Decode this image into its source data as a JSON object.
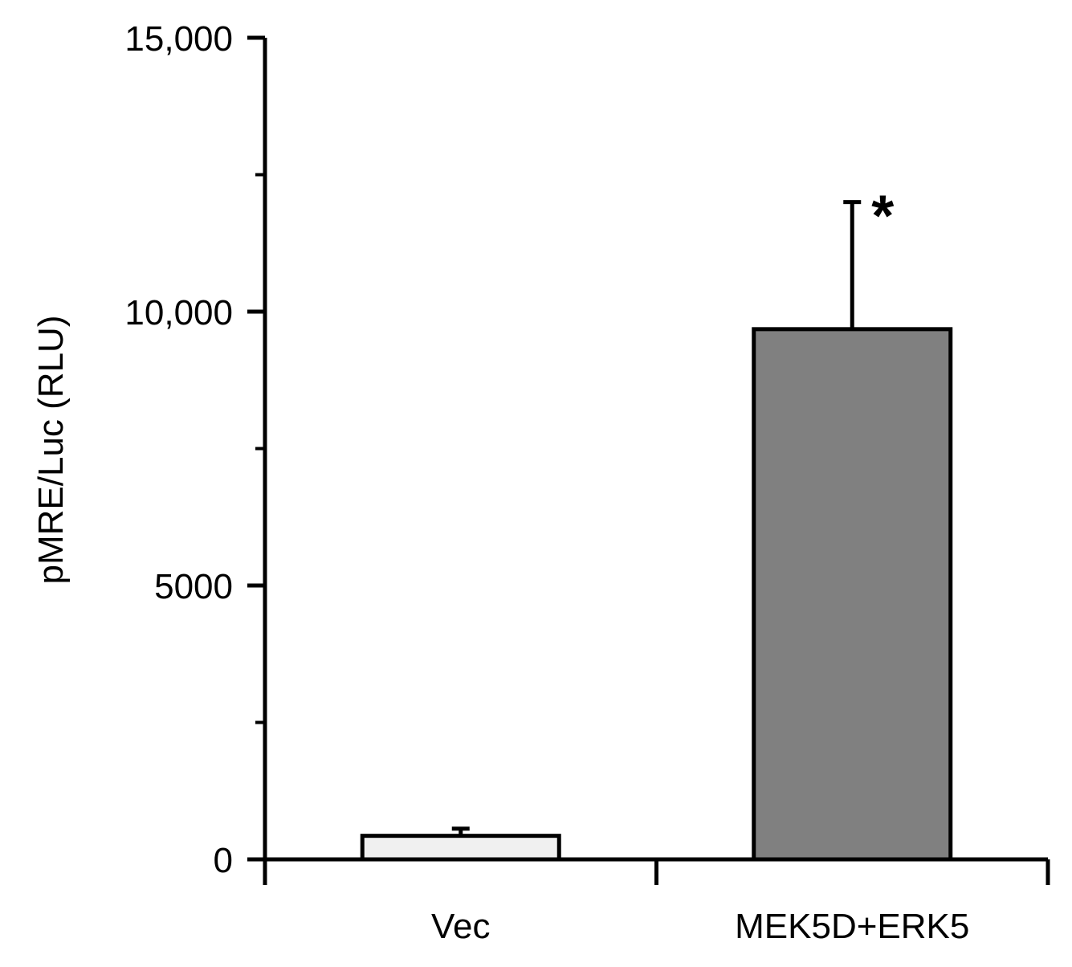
{
  "chart_data": {
    "type": "bar",
    "categories": [
      "Vec",
      "MEK5D+ERK5"
    ],
    "values": [
      430,
      9680
    ],
    "error_bars": [
      130,
      2320
    ],
    "colors": [
      "#f0f0f0",
      "#808080"
    ],
    "title": "",
    "xlabel": "",
    "ylabel": "pMRE/Luc (RLU)",
    "ylim": [
      0,
      15000
    ],
    "y_ticks": [
      0,
      5000,
      10000,
      15000
    ],
    "y_tick_labels": [
      "0",
      "5000",
      "10,000",
      "15,000"
    ],
    "y_minor_ticks": [
      2500,
      7500,
      12500
    ],
    "annotations": [
      {
        "category": "MEK5D+ERK5",
        "text": "*"
      }
    ],
    "grid": false,
    "legend": "none"
  }
}
